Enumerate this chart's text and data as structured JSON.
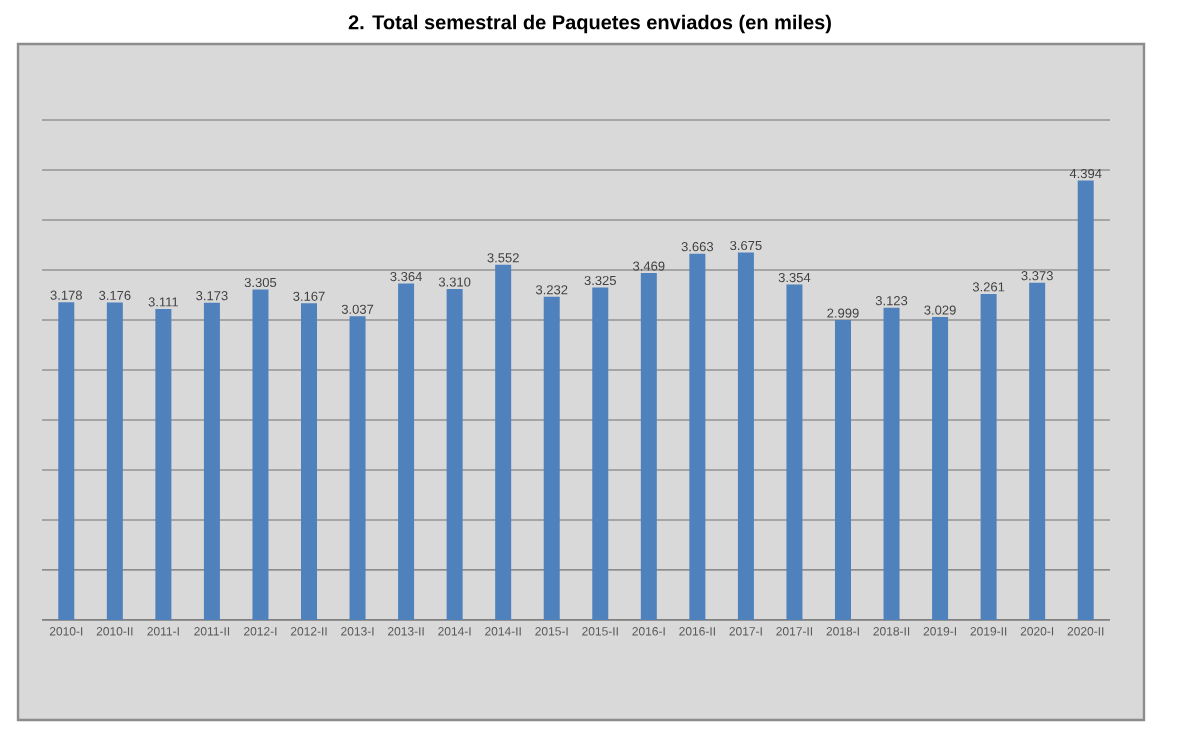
{
  "chart_data": {
    "type": "bar",
    "title": "2.    Total semestral de Paquetes enviados (en miles)",
    "categories": [
      "2010-I",
      "2010-II",
      "2011-I",
      "2011-II",
      "2012-I",
      "2012-II",
      "2013-I",
      "2013-II",
      "2014-I",
      "2014-II",
      "2015-I",
      "2015-II",
      "2016-I",
      "2016-II",
      "2017-I",
      "2017-II",
      "2018-I",
      "2018-II",
      "2019-I",
      "2019-II",
      "2020-I",
      "2020-II"
    ],
    "values": [
      3.178,
      3.176,
      3.111,
      3.173,
      3.305,
      3.167,
      3.037,
      3.364,
      3.31,
      3.552,
      3.232,
      3.325,
      3.469,
      3.663,
      3.675,
      3.354,
      2.999,
      3.123,
      3.029,
      3.261,
      3.373,
      4.394
    ],
    "value_labels": [
      "3.178",
      "3.176",
      "3.111",
      "3.173",
      "3.305",
      "3.167",
      "3.037",
      "3.364",
      "3.310",
      "3.552",
      "3.232",
      "3.325",
      "3.469",
      "3.663",
      "3.675",
      "3.354",
      "2.999",
      "3.123",
      "3.029",
      "3.261",
      "3.373",
      "4.394"
    ],
    "color": "#4f81bd",
    "ylim": [
      0,
      5
    ],
    "yticks": [
      {
        "value": 0,
        "label": null
      },
      {
        "value": 0.5,
        "label": null
      },
      {
        "value": 1,
        "label": null
      },
      {
        "value": 1.5,
        "label": null
      },
      {
        "value": 2,
        "label": null
      },
      {
        "value": 2.5,
        "label": null
      },
      {
        "value": 3,
        "label": null
      },
      {
        "value": 3.5,
        "label": null
      },
      {
        "value": 4,
        "label": null
      },
      {
        "value": 4.5,
        "label": null
      },
      {
        "value": 5,
        "label": null
      }
    ],
    "grid": "y",
    "tick_labels": "x"
  }
}
